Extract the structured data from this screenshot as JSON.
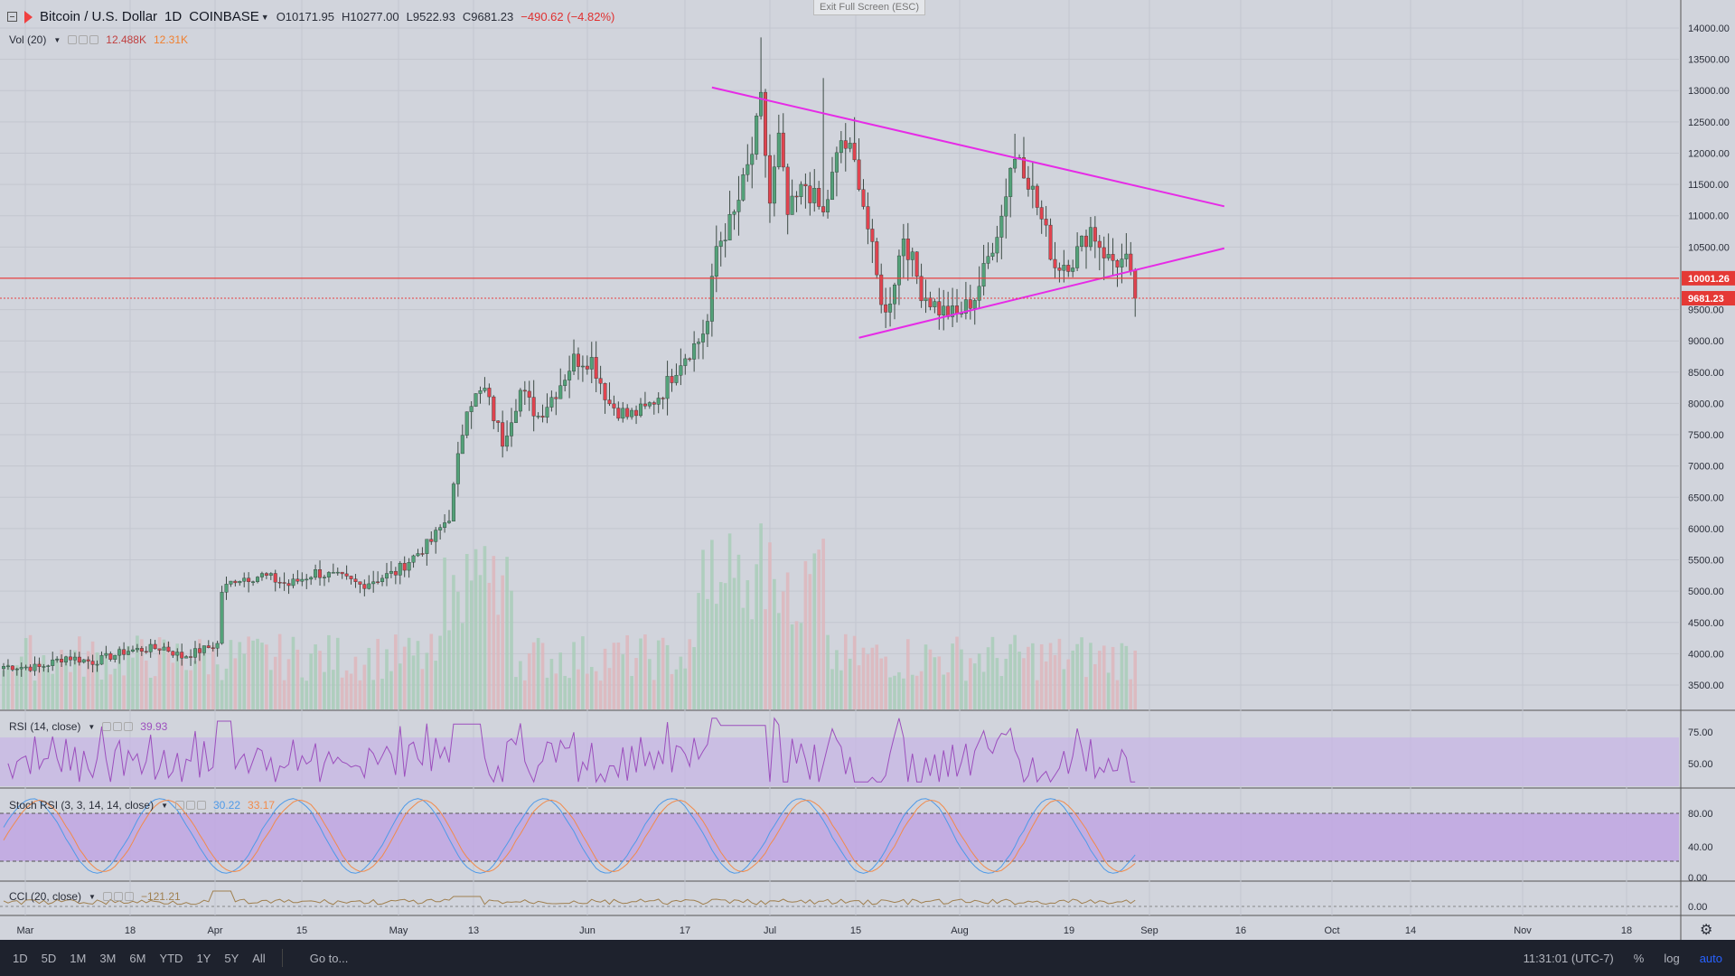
{
  "window": {
    "exit_fullscreen": "Exit Full Screen (ESC)"
  },
  "header": {
    "symbol": "Bitcoin / U.S. Dollar",
    "interval": "1D",
    "exchange": "COINBASE",
    "open": "O10171.95",
    "high": "H10277.00",
    "low": "L9522.93",
    "close": "C9681.23",
    "change": "−490.62 (−4.82%)"
  },
  "volume_label": {
    "name": "Vol (20)",
    "value1": "12.488K",
    "value2": "12.31K"
  },
  "rsi_label": {
    "name": "RSI (14, close)",
    "value": "39.93"
  },
  "stoch_label": {
    "name": "Stoch RSI (3, 3, 14, 14, close)",
    "k": "30.22",
    "d": "33.17"
  },
  "cci_label": {
    "name": "CCI (20, close)",
    "value": "−121.21"
  },
  "price_badges": {
    "line": "10001.26",
    "last": "9681.23"
  },
  "bottom": {
    "timeframes": [
      "1D",
      "5D",
      "1M",
      "3M",
      "6M",
      "YTD",
      "1Y",
      "5Y",
      "All"
    ],
    "goto": "Go to...",
    "clock": "11:31:01 (UTC-7)",
    "percent": "%",
    "log": "log",
    "auto": "auto"
  },
  "colors": {
    "up": "#53a179",
    "down": "#e0434f",
    "trendline": "#e62be6",
    "hline": "#e84040",
    "rsi": "#9c4fbd",
    "stoch_k": "#4f9ae8",
    "stoch_d": "#f28a4a",
    "cci": "#a08050"
  },
  "chart_data": {
    "type": "candlestick",
    "y_axis": {
      "min": 3000,
      "max": 14000,
      "ticks": [
        "14000.00",
        "13500.00",
        "13000.00",
        "12500.00",
        "12000.00",
        "11500.00",
        "11000.00",
        "10500.00",
        "10000.00",
        "9500.00",
        "9000.00",
        "8500.00",
        "8000.00",
        "7500.00",
        "7000.00",
        "6500.00",
        "6000.00",
        "5500.00",
        "5000.00",
        "4500.00",
        "4000.00",
        "3500.00"
      ]
    },
    "x_axis": {
      "labels": [
        "Mar",
        "18",
        "Apr",
        "15",
        "May",
        "13",
        "Jun",
        "17",
        "Jul",
        "15",
        "Aug",
        "19",
        "Sep",
        "16",
        "Oct",
        "14",
        "Nov",
        "18"
      ]
    },
    "rsi_ticks": [
      "75.00",
      "50.00"
    ],
    "stoch_ticks": [
      "80.00",
      "40.00",
      "0.00"
    ],
    "cci_ticks": [
      "0.00"
    ],
    "anchors": [
      [
        0,
        3800
      ],
      [
        8,
        3780
      ],
      [
        14,
        3950
      ],
      [
        20,
        3870
      ],
      [
        28,
        4050
      ],
      [
        36,
        4100
      ],
      [
        40,
        3950
      ],
      [
        48,
        4150
      ],
      [
        49,
        5000
      ],
      [
        52,
        5200
      ],
      [
        58,
        5250
      ],
      [
        64,
        5100
      ],
      [
        70,
        5300
      ],
      [
        76,
        5200
      ],
      [
        80,
        5100
      ],
      [
        88,
        5300
      ],
      [
        96,
        5800
      ],
      [
        100,
        6200
      ],
      [
        102,
        7100
      ],
      [
        104,
        8000
      ],
      [
        108,
        8200
      ],
      [
        112,
        7400
      ],
      [
        116,
        8200
      ],
      [
        120,
        7800
      ],
      [
        124,
        8200
      ],
      [
        128,
        8700
      ],
      [
        132,
        8700
      ],
      [
        136,
        8000
      ],
      [
        140,
        7800
      ],
      [
        144,
        7900
      ],
      [
        148,
        8200
      ],
      [
        152,
        8700
      ],
      [
        156,
        9000
      ],
      [
        158,
        9300
      ],
      [
        160,
        10500
      ],
      [
        164,
        11000
      ],
      [
        168,
        12000
      ],
      [
        170,
        12800
      ],
      [
        172,
        11200
      ],
      [
        174,
        12200
      ],
      [
        176,
        11000
      ],
      [
        180,
        11500
      ],
      [
        184,
        11000
      ],
      [
        188,
        12200
      ],
      [
        190,
        12000
      ],
      [
        192,
        11600
      ],
      [
        194,
        10800
      ],
      [
        196,
        10000
      ],
      [
        198,
        9400
      ],
      [
        200,
        10000
      ],
      [
        202,
        10700
      ],
      [
        206,
        9800
      ],
      [
        210,
        9500
      ],
      [
        214,
        9400
      ],
      [
        218,
        9700
      ],
      [
        220,
        10100
      ],
      [
        224,
        11000
      ],
      [
        226,
        11800
      ],
      [
        228,
        12000
      ],
      [
        230,
        11600
      ],
      [
        234,
        10700
      ],
      [
        236,
        10200
      ],
      [
        240,
        10300
      ],
      [
        244,
        10800
      ],
      [
        248,
        10300
      ],
      [
        252,
        10250
      ],
      [
        254,
        9681
      ]
    ],
    "trendlines": [
      {
        "from_bar": 159,
        "from_price": 13050,
        "to_bar": 274,
        "to_price": 11150
      },
      {
        "from_bar": 192,
        "from_price": 9050,
        "to_bar": 274,
        "to_price": 10480
      }
    ],
    "horizontal_line": 10001.26,
    "last_price": 9681.23
  }
}
